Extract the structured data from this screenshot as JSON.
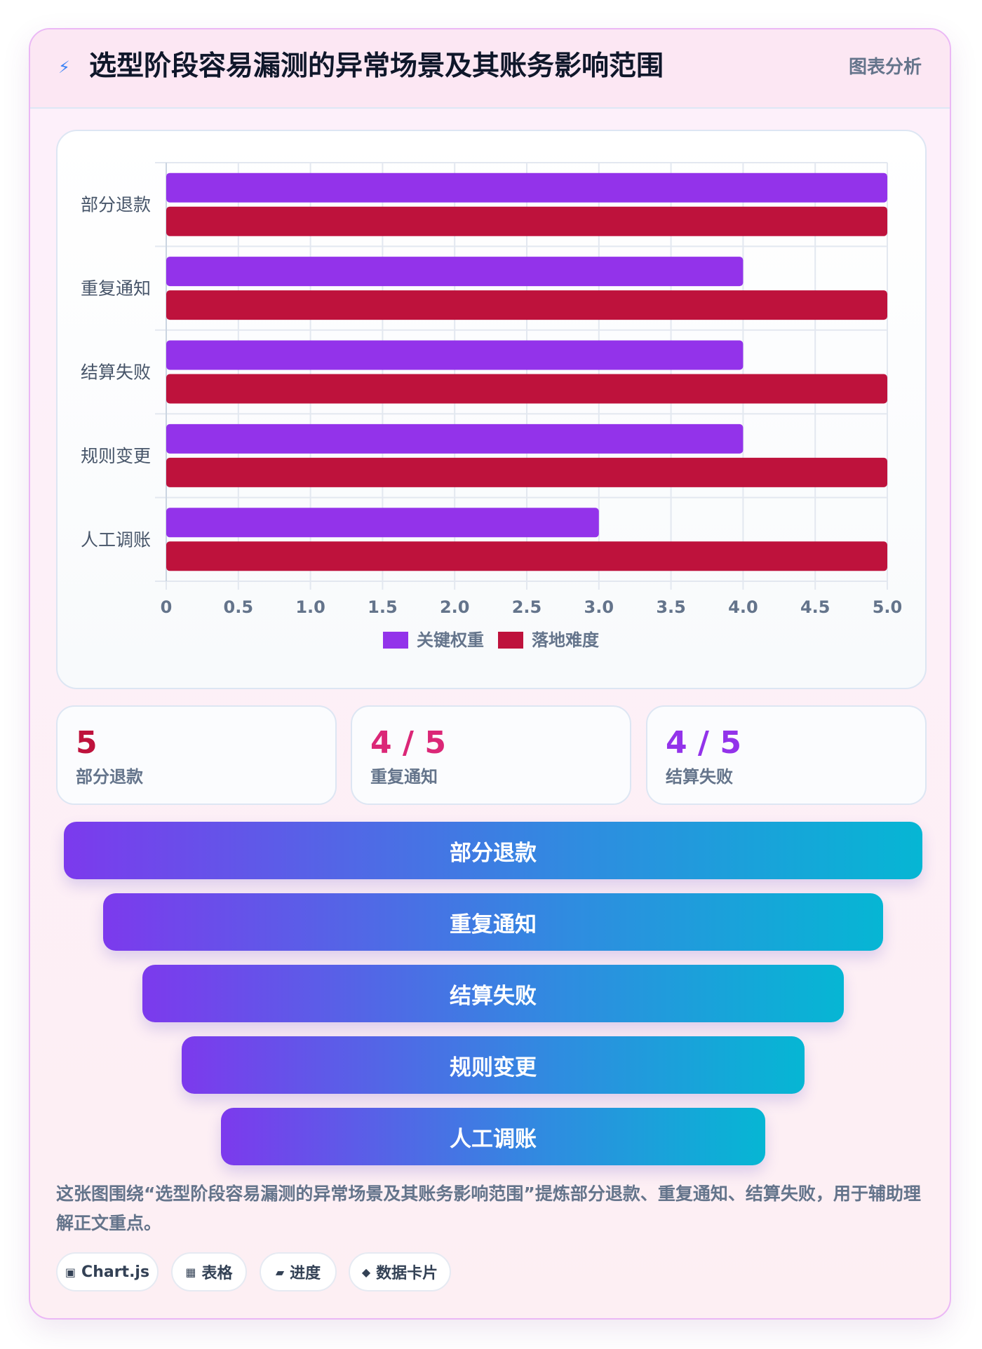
{
  "header": {
    "icon": "lightning-icon",
    "title": "选型阶段容易漏测的异常场景及其账务影响范围",
    "tag": "图表分析"
  },
  "chart_data": {
    "type": "bar",
    "orientation": "horizontal",
    "categories": [
      "部分退款",
      "重复通知",
      "结算失败",
      "规则变更",
      "人工调账"
    ],
    "series": [
      {
        "name": "关键权重",
        "values": [
          5,
          4,
          4,
          4,
          3
        ],
        "color": "#9333ea"
      },
      {
        "name": "落地难度",
        "values": [
          5,
          5,
          5,
          5,
          5
        ],
        "color": "#be123c"
      }
    ],
    "xlim": [
      0,
      5
    ],
    "xticks": [
      "0",
      "0.5",
      "1.0",
      "1.5",
      "2.0",
      "2.5",
      "3.0",
      "3.5",
      "4.0",
      "4.5",
      "5.0"
    ],
    "grid": true,
    "legend": "bottom"
  },
  "stats": [
    {
      "value": "5",
      "label": "部分退款",
      "color": "#be123c"
    },
    {
      "value": "4 / 5",
      "label": "重复通知",
      "color": "#db2777"
    },
    {
      "value": "4 / 5",
      "label": "结算失败",
      "color": "#9333ea"
    }
  ],
  "funnel": [
    "部分退款",
    "重复通知",
    "结算失败",
    "规则变更",
    "人工调账"
  ],
  "description": "这张图围绕“选型阶段容易漏测的异常场景及其账务影响范围”提炼部分退款、重复通知、结算失败，用于辅助理解正文重点。",
  "tags": [
    {
      "icon": "▣",
      "label": "Chart.js"
    },
    {
      "icon": "▦",
      "label": "表格"
    },
    {
      "icon": "▰",
      "label": "进度"
    },
    {
      "icon": "◆",
      "label": "数据卡片"
    }
  ]
}
